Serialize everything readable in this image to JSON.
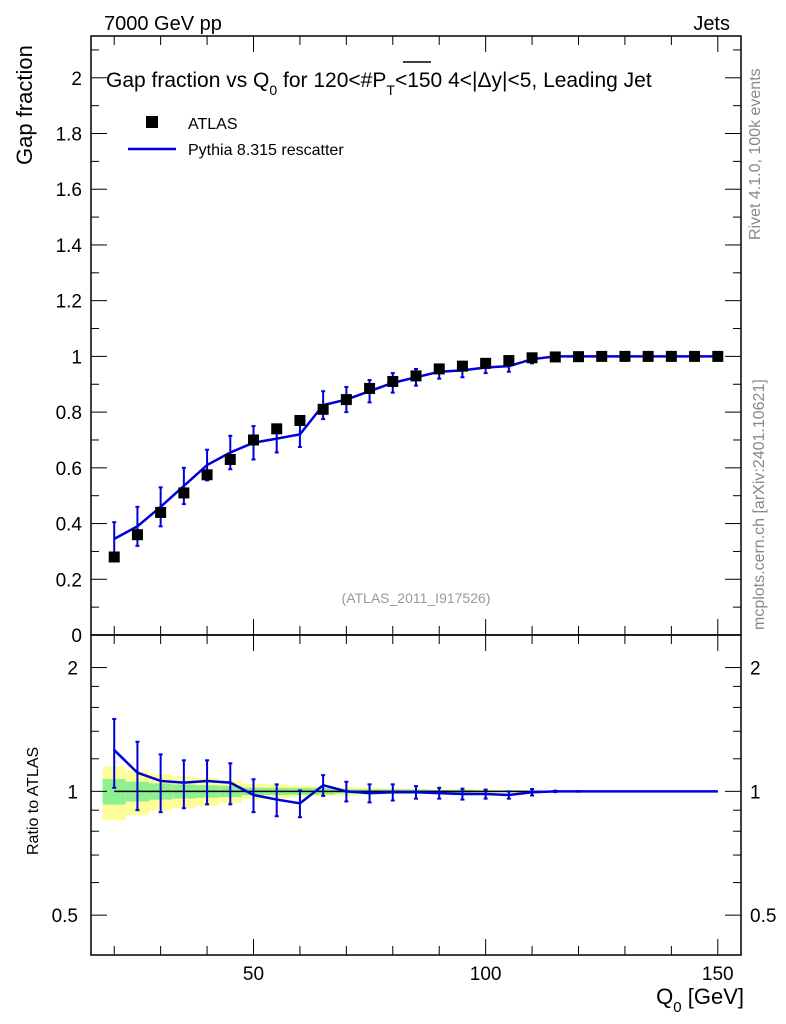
{
  "header": {
    "left": "7000 GeV pp",
    "right": "Jets",
    "title_part1": "Gap fraction vs Q",
    "title_sub": "0",
    "title_part2": " for 120<#",
    "title_pbar": "P",
    "title_pbar_sub": "T",
    "title_part3": "<150  4<|Δy|<5, Leading Jet"
  },
  "side_labels": {
    "rivet": "Rivet 4.1.0,  100k events",
    "mcplots": "mcplots.cern.ch [arXiv:2401.10621]"
  },
  "analysis_id": "(ATLAS_2011_I917526)",
  "legend": {
    "data_label": "ATLAS",
    "mc_label": "Pythia 8.315 rescatter"
  },
  "colors": {
    "data": "#000000",
    "mc": "#0000dd",
    "band_inner": "#8ef08e",
    "band_outer": "#fdfd9a"
  },
  "chart_data": {
    "type": "line",
    "title": "Gap fraction vs Q0 for 120<PT<150 4<|Δy|<5, Leading Jet",
    "xlabel": "Q",
    "xlabel_sub": "0",
    "xlabel_unit": " [GeV]",
    "ylabel": "Gap fraction",
    "ratio_ylabel": "Ratio to ATLAS",
    "xlim": [
      15,
      155
    ],
    "ylim": [
      0,
      2.15
    ],
    "ratio_ylim": [
      0.4,
      2.4
    ],
    "x_ticks": [
      50,
      100,
      150
    ],
    "x_tick_labels": [
      "50",
      "100",
      "150"
    ],
    "y_ticks": [
      0,
      0.2,
      0.4,
      0.6,
      0.8,
      1,
      1.2,
      1.4,
      1.6,
      1.8,
      2
    ],
    "y_tick_labels": [
      "0",
      "0.2",
      "0.4",
      "0.6",
      "0.8",
      "1",
      "1.2",
      "1.4",
      "1.6",
      "1.8",
      "2"
    ],
    "ratio_ticks": [
      0.5,
      1,
      2
    ],
    "ratio_tick_labels": [
      "0.5",
      "1",
      "2"
    ],
    "x": [
      20,
      25,
      30,
      35,
      40,
      45,
      50,
      55,
      60,
      65,
      70,
      75,
      80,
      85,
      90,
      95,
      100,
      105,
      110,
      115,
      120,
      125,
      130,
      135,
      140,
      145,
      150
    ],
    "data": {
      "name": "ATLAS",
      "values": [
        0.28,
        0.36,
        0.44,
        0.51,
        0.575,
        0.63,
        0.7,
        0.74,
        0.77,
        0.81,
        0.845,
        0.885,
        0.91,
        0.93,
        0.955,
        0.965,
        0.975,
        0.985,
        0.995,
        0.998,
        0.999,
        1.0,
        1.0,
        1.0,
        1.0,
        1.0,
        1.0
      ],
      "err_stat": [
        0.02,
        0.02,
        0.02,
        0.02,
        0.02,
        0.02,
        0.015,
        0.015,
        0.015,
        0.015,
        0.01,
        0.01,
        0.01,
        0.01,
        0.008,
        0.008,
        0.005,
        0.005,
        0.004,
        0.002,
        0.001,
        0,
        0,
        0,
        0,
        0,
        0
      ],
      "err_tot": [
        0.042,
        0.045,
        0.045,
        0.045,
        0.045,
        0.04,
        0.03,
        0.03,
        0.025,
        0.022,
        0.02,
        0.018,
        0.015,
        0.012,
        0.01,
        0.01,
        0.008,
        0.006,
        0.005,
        0.003,
        0.002,
        0,
        0,
        0,
        0,
        0,
        0
      ]
    },
    "mc": {
      "name": "Pythia 8.315 rescatter",
      "values": [
        0.345,
        0.39,
        0.46,
        0.535,
        0.61,
        0.655,
        0.69,
        0.705,
        0.72,
        0.825,
        0.845,
        0.875,
        0.905,
        0.925,
        0.945,
        0.95,
        0.96,
        0.965,
        0.99,
        1.0,
        1.0,
        1.0,
        1.0,
        1.0,
        1.0,
        1.0,
        1.0
      ],
      "errors": [
        0.06,
        0.07,
        0.07,
        0.065,
        0.055,
        0.06,
        0.06,
        0.05,
        0.045,
        0.05,
        0.045,
        0.04,
        0.035,
        0.03,
        0.025,
        0.025,
        0.02,
        0.02,
        0.015,
        0.003,
        0.002,
        0,
        0,
        0,
        0,
        0,
        0
      ]
    },
    "ratio": {
      "values": [
        1.26,
        1.11,
        1.06,
        1.05,
        1.06,
        1.05,
        0.98,
        0.955,
        0.935,
        1.035,
        1.0,
        0.99,
        0.995,
        0.995,
        0.99,
        0.985,
        0.985,
        0.98,
        0.995,
        1.0,
        1.0,
        1.0,
        1.0,
        1.0,
        1.0,
        1.0,
        1.0
      ],
      "errors": [
        0.24,
        0.21,
        0.17,
        0.14,
        0.13,
        0.12,
        0.09,
        0.085,
        0.07,
        0.06,
        0.055,
        0.05,
        0.045,
        0.035,
        0.03,
        0.03,
        0.025,
        0.02,
        0.018,
        0.004,
        0.002,
        0,
        0,
        0,
        0,
        0,
        0
      ]
    }
  }
}
